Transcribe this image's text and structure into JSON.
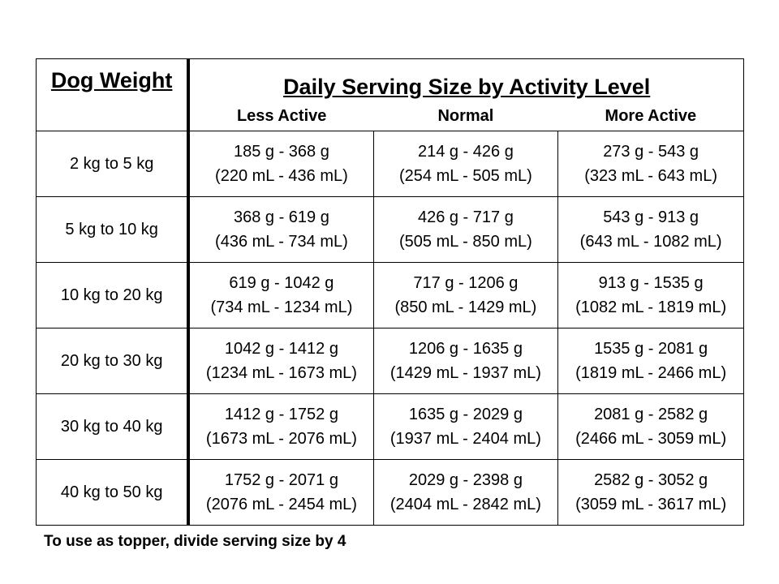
{
  "header": {
    "weight_label": "Dog Weight",
    "title": "Daily Serving Size by Activity Level",
    "levels": [
      "Less Active",
      "Normal",
      "More Active"
    ]
  },
  "rows": [
    {
      "weight": "2 kg to 5 kg",
      "cells": [
        {
          "grams": "185 g - 368 g",
          "ml": "(220 mL - 436 mL)"
        },
        {
          "grams": "214 g - 426 g",
          "ml": "(254 mL - 505 mL)"
        },
        {
          "grams": "273 g - 543 g",
          "ml": "(323 mL - 643 mL)"
        }
      ]
    },
    {
      "weight": "5 kg to 10 kg",
      "cells": [
        {
          "grams": "368 g - 619 g",
          "ml": "(436 mL - 734 mL)"
        },
        {
          "grams": "426 g - 717 g",
          "ml": "(505 mL - 850 mL)"
        },
        {
          "grams": "543 g - 913 g",
          "ml": "(643 mL - 1082 mL)"
        }
      ]
    },
    {
      "weight": "10 kg to 20 kg",
      "cells": [
        {
          "grams": "619 g - 1042 g",
          "ml": "(734 mL - 1234 mL)"
        },
        {
          "grams": "717 g - 1206 g",
          "ml": "(850 mL - 1429 mL)"
        },
        {
          "grams": "913 g - 1535 g",
          "ml": "(1082 mL - 1819 mL)"
        }
      ]
    },
    {
      "weight": "20 kg to 30 kg",
      "cells": [
        {
          "grams": "1042 g - 1412 g",
          "ml": "(1234 mL - 1673 mL)"
        },
        {
          "grams": "1206 g - 1635 g",
          "ml": "(1429 mL - 1937 mL)"
        },
        {
          "grams": "1535 g - 2081 g",
          "ml": "(1819 mL - 2466 mL)"
        }
      ]
    },
    {
      "weight": "30 kg to 40 kg",
      "cells": [
        {
          "grams": "1412 g - 1752 g",
          "ml": "(1673 mL - 2076 mL)"
        },
        {
          "grams": "1635 g - 2029 g",
          "ml": "(1937 mL - 2404 mL)"
        },
        {
          "grams": "2081 g - 2582 g",
          "ml": "(2466 mL - 3059 mL)"
        }
      ]
    },
    {
      "weight": "40 kg to 50 kg",
      "cells": [
        {
          "grams": "1752 g - 2071 g",
          "ml": "(2076 mL - 2454 mL)"
        },
        {
          "grams": "2029 g - 2398 g",
          "ml": "(2404 mL - 2842 mL)"
        },
        {
          "grams": "2582 g - 3052 g",
          "ml": "(3059 mL - 3617 mL)"
        }
      ]
    }
  ],
  "footnote": "To use as topper, divide serving size by 4"
}
